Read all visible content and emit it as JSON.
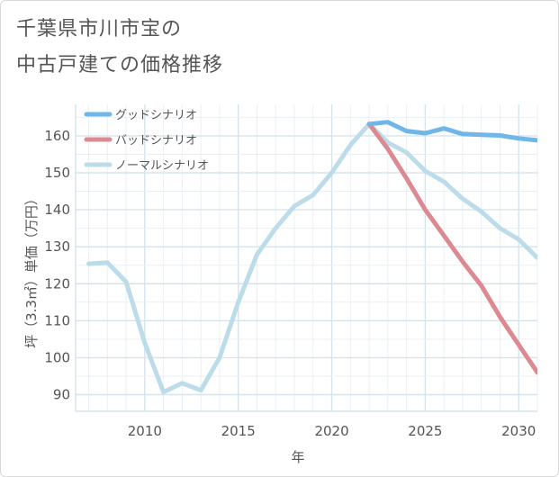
{
  "title": {
    "line1": "千葉県市川市宝の",
    "line2": "中古戸建ての価格推移"
  },
  "chart_data": {
    "type": "line",
    "xlabel": "年",
    "ylabel": "坪（3.3㎡）単価（万円）",
    "xlim": [
      2006.3,
      2031.0
    ],
    "ylim": [
      85.5,
      168.5
    ],
    "xticks": [
      2010,
      2015,
      2020,
      2025,
      2030
    ],
    "yticks": [
      90,
      100,
      110,
      120,
      130,
      140,
      150,
      160
    ],
    "grid": true,
    "legend_position": "top-left",
    "series": [
      {
        "name": "グッドシナリオ",
        "color": "#6fb7e9",
        "x": [
          2022,
          2023,
          2024,
          2025,
          2026,
          2027,
          2028,
          2029,
          2030,
          2031
        ],
        "y": [
          163.2,
          163.7,
          161.3,
          160.7,
          162.0,
          160.5,
          160.3,
          160.1,
          159.3,
          158.8
        ]
      },
      {
        "name": "バッドシナリオ",
        "color": "#dc8a92",
        "x": [
          2022,
          2023,
          2024,
          2025,
          2026,
          2027,
          2028,
          2029,
          2030,
          2031
        ],
        "y": [
          163.2,
          156.5,
          148.5,
          140.0,
          133.0,
          126.0,
          119.5,
          111.0,
          103.5,
          96.0
        ]
      },
      {
        "name": "ノーマルシナリオ",
        "color": "#bcdcea",
        "x": [
          2007,
          2008,
          2009,
          2010,
          2011,
          2012,
          2013,
          2014,
          2015,
          2016,
          2017,
          2018,
          2019,
          2020,
          2021,
          2022,
          2023,
          2024,
          2025,
          2026,
          2027,
          2028,
          2029,
          2030,
          2031
        ],
        "y": [
          125.4,
          125.7,
          120.5,
          104.0,
          90.7,
          93.1,
          91.2,
          100.0,
          115.0,
          127.9,
          135.0,
          141.0,
          144.0,
          150.0,
          157.5,
          163.2,
          158.2,
          155.5,
          150.5,
          147.6,
          143.0,
          139.5,
          135.0,
          132.0,
          127.0
        ]
      }
    ]
  }
}
